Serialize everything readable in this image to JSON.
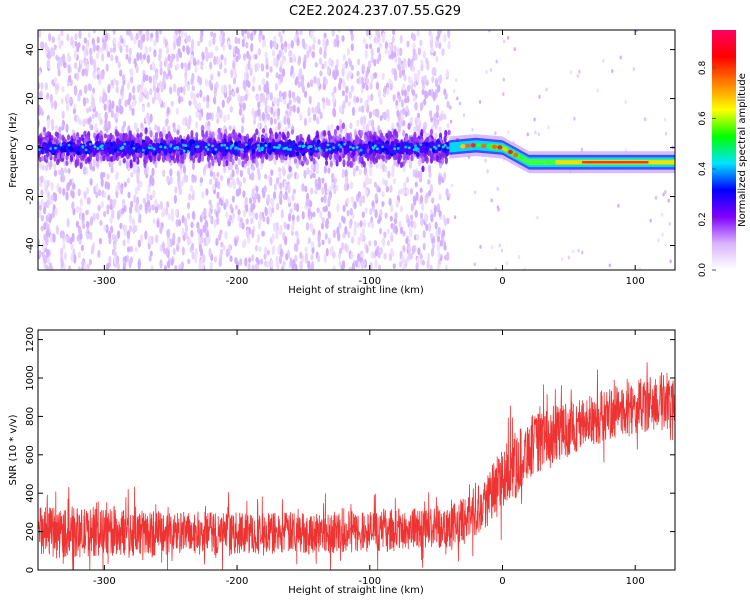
{
  "title": "C2E2.2024.237.07.55.G29",
  "chart_data": [
    {
      "type": "heatmap",
      "name": "spectrogram",
      "xlabel": "Height of straight line (km)",
      "ylabel": "Frequency (Hz)",
      "xlim": [
        -350,
        130
      ],
      "ylim": [
        -50,
        48
      ],
      "xticks": [
        -300,
        -200,
        -100,
        0,
        100
      ],
      "yticks": [
        -40,
        -20,
        0,
        20,
        40
      ],
      "colorbar": {
        "label": "Normalized spectral amplitude",
        "range": [
          0.0,
          0.95
        ],
        "ticks": [
          0.0,
          0.2,
          0.4,
          0.6,
          0.8
        ],
        "colors": [
          "#ffffff",
          "#d9b3ff",
          "#8000ff",
          "#0000ff",
          "#00e5ff",
          "#00ff00",
          "#ffff00",
          "#ff8000",
          "#ff0000",
          "#ff0060"
        ]
      },
      "ridge": [
        {
          "x": -350,
          "y": 0
        },
        {
          "x": -40,
          "y": 0
        },
        {
          "x": -20,
          "y": 1
        },
        {
          "x": 0,
          "y": 0
        },
        {
          "x": 10,
          "y": -3
        },
        {
          "x": 20,
          "y": -6
        },
        {
          "x": 60,
          "y": -6
        },
        {
          "x": 100,
          "y": -6
        },
        {
          "x": 130,
          "y": -6
        }
      ]
    },
    {
      "type": "line",
      "name": "snr",
      "xlabel": "Height of straight line (km)",
      "ylabel": "SNR (10 * v/v)",
      "xlim": [
        -350,
        130
      ],
      "ylim": [
        0,
        1250
      ],
      "xticks": [
        -300,
        -200,
        -100,
        0,
        100
      ],
      "yticks": [
        0,
        200,
        400,
        600,
        800,
        1000,
        1200
      ],
      "color": "#ee3333",
      "envelope": [
        {
          "x": -350,
          "low": 60,
          "high": 330
        },
        {
          "x": -300,
          "low": 70,
          "high": 320
        },
        {
          "x": -200,
          "low": 80,
          "high": 300
        },
        {
          "x": -100,
          "low": 90,
          "high": 310
        },
        {
          "x": -50,
          "low": 110,
          "high": 330
        },
        {
          "x": -30,
          "low": 130,
          "high": 370
        },
        {
          "x": -10,
          "low": 230,
          "high": 520
        },
        {
          "x": 0,
          "low": 300,
          "high": 640
        },
        {
          "x": 10,
          "low": 370,
          "high": 720
        },
        {
          "x": 20,
          "low": 480,
          "high": 800
        },
        {
          "x": 40,
          "low": 560,
          "high": 860
        },
        {
          "x": 60,
          "low": 620,
          "high": 900
        },
        {
          "x": 80,
          "low": 680,
          "high": 950
        },
        {
          "x": 100,
          "low": 700,
          "high": 990
        },
        {
          "x": 130,
          "low": 740,
          "high": 1050
        }
      ]
    }
  ]
}
